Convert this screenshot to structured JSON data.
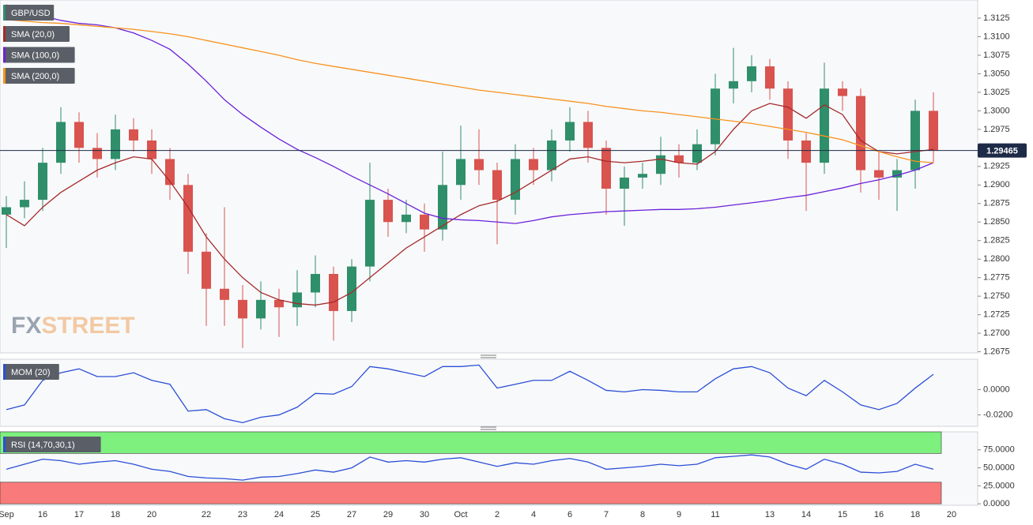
{
  "chart_data": [
    {
      "type": "candlestick",
      "watermark": [
        "FX",
        "STREET"
      ],
      "categories": [
        "Sep",
        null,
        "16",
        null,
        "17",
        null,
        "18",
        null,
        "20",
        null,
        null,
        "22",
        null,
        "23",
        null,
        "24",
        null,
        "25",
        null,
        "27",
        null,
        "29",
        null,
        "30",
        null,
        "Oct",
        null,
        "2",
        null,
        "4",
        null,
        "6",
        null,
        "7",
        null,
        "8",
        null,
        "9",
        null,
        "11",
        null,
        null,
        "13",
        null,
        "14",
        null,
        "15",
        null,
        "16",
        null,
        "18",
        null,
        "20"
      ],
      "ohlc": {
        "name": "GBP/USD",
        "up_color": "#2f8f6a",
        "down_color": "#d9534f",
        "open": [
          1.286,
          1.287,
          1.288,
          1.293,
          1.2985,
          1.295,
          1.2935,
          1.2975,
          1.296,
          1.2935,
          1.29,
          1.281,
          1.276,
          1.2745,
          1.272,
          1.2745,
          1.2735,
          1.2755,
          1.278,
          1.273,
          1.279,
          1.288,
          1.285,
          1.286,
          1.284,
          1.29,
          1.2935,
          1.292,
          1.288,
          1.2935,
          1.292,
          1.296,
          1.2985,
          1.295,
          1.2895,
          1.291,
          1.2915,
          1.294,
          1.293,
          1.2955,
          1.303,
          1.304,
          1.306,
          1.303,
          1.296,
          1.293,
          1.303,
          1.302,
          1.292,
          1.291,
          1.292,
          1.3,
          null
        ],
        "high": [
          1.2885,
          1.2905,
          1.295,
          1.3005,
          1.2998,
          1.297,
          1.2995,
          1.299,
          1.2975,
          1.295,
          1.2915,
          1.2835,
          1.287,
          1.2765,
          1.277,
          1.276,
          1.2785,
          1.2805,
          1.279,
          1.28,
          1.293,
          1.2895,
          1.288,
          1.2875,
          1.2945,
          1.298,
          1.2975,
          1.293,
          1.2955,
          1.295,
          1.2975,
          1.3005,
          1.3,
          1.296,
          1.2925,
          1.293,
          1.2965,
          1.2955,
          1.2975,
          1.305,
          1.3085,
          1.3075,
          1.307,
          1.304,
          1.297,
          1.3065,
          1.304,
          1.303,
          1.2945,
          1.2935,
          1.3015,
          1.3025,
          null
        ],
        "low": [
          1.2815,
          1.2855,
          1.2865,
          1.2915,
          1.293,
          1.291,
          1.292,
          1.2945,
          1.2915,
          1.288,
          1.278,
          1.271,
          1.271,
          1.268,
          1.2705,
          1.2695,
          1.271,
          1.2735,
          1.269,
          1.2715,
          1.277,
          1.283,
          1.2835,
          1.281,
          1.2825,
          1.288,
          1.29,
          1.282,
          1.286,
          1.29,
          1.2905,
          1.2945,
          1.293,
          1.286,
          1.2845,
          1.2895,
          1.29,
          1.291,
          1.292,
          1.294,
          1.301,
          1.3025,
          1.3015,
          1.2935,
          1.2865,
          1.2915,
          1.3,
          1.289,
          1.288,
          1.2865,
          1.2895,
          1.293,
          null
        ],
        "close": [
          1.287,
          1.288,
          1.293,
          1.2985,
          1.295,
          1.2935,
          1.2975,
          1.296,
          1.2935,
          1.29,
          1.281,
          1.276,
          1.2745,
          1.272,
          1.2745,
          1.2735,
          1.2755,
          1.278,
          1.273,
          1.279,
          1.288,
          1.285,
          1.286,
          1.284,
          1.29,
          1.2935,
          1.292,
          1.288,
          1.2935,
          1.292,
          1.296,
          1.2985,
          1.295,
          1.2895,
          1.291,
          1.2915,
          1.294,
          1.293,
          1.2955,
          1.303,
          1.304,
          1.306,
          1.303,
          1.296,
          1.293,
          1.303,
          1.302,
          1.292,
          1.291,
          1.292,
          1.3,
          1.29465,
          null
        ]
      },
      "series": [
        {
          "name": "SMA (20,0)",
          "color": "#a52a2a",
          "values": [
            1.286,
            1.2845,
            1.287,
            1.289,
            1.2905,
            1.292,
            1.293,
            1.2938,
            1.2935,
            1.2905,
            1.287,
            1.283,
            1.28,
            1.2775,
            1.2755,
            1.2745,
            1.274,
            1.2738,
            1.2742,
            1.2755,
            1.2775,
            1.2795,
            1.2815,
            1.283,
            1.2845,
            1.286,
            1.2872,
            1.2878,
            1.289,
            1.2905,
            1.292,
            1.2935,
            1.2938,
            1.2932,
            1.293,
            1.2932,
            1.2935,
            1.293,
            1.2928,
            1.2945,
            1.2975,
            1.3,
            1.301,
            1.3005,
            1.299,
            1.3008,
            1.2995,
            1.296,
            1.2945,
            1.2942,
            1.2945,
            1.2948,
            null
          ]
        },
        {
          "name": "SMA (100,0)",
          "color": "#6a22d8",
          "values": [
            1.3143,
            1.3135,
            1.3128,
            1.3122,
            1.3118,
            1.3116,
            1.3112,
            1.3105,
            1.3095,
            1.3083,
            1.3063,
            1.304,
            1.3015,
            1.2995,
            1.2978,
            1.2962,
            1.2948,
            1.2937,
            1.2925,
            1.2912,
            1.29,
            1.2888,
            1.2875,
            1.2862,
            1.2855,
            1.2853,
            1.2852,
            1.285,
            1.2848,
            1.2852,
            1.2857,
            1.286,
            1.2862,
            1.2864,
            1.2865,
            1.2866,
            1.2867,
            1.2867,
            1.2868,
            1.287,
            1.2873,
            1.2876,
            1.2879,
            1.2883,
            1.2886,
            1.2891,
            1.2896,
            1.2902,
            1.2907,
            1.2913,
            1.292,
            1.293,
            null
          ]
        },
        {
          "name": "SMA (200,0)",
          "color": "#f7931e",
          "values": [
            1.3123,
            1.3121,
            1.3119,
            1.3118,
            1.3116,
            1.3114,
            1.3112,
            1.311,
            1.3107,
            1.3104,
            1.31,
            1.3095,
            1.309,
            1.3085,
            1.308,
            1.3075,
            1.3069,
            1.3064,
            1.306,
            1.3056,
            1.3052,
            1.3048,
            1.3044,
            1.304,
            1.3036,
            1.3032,
            1.3028,
            1.3025,
            1.3022,
            1.3019,
            1.3016,
            1.3013,
            1.301,
            1.3006,
            1.3003,
            1.3,
            1.2998,
            1.2995,
            1.2992,
            1.2989,
            1.2986,
            1.2983,
            1.2979,
            1.2975,
            1.2971,
            1.2966,
            1.2961,
            1.2953,
            1.2945,
            1.2938,
            1.2932,
            1.293,
            null
          ]
        }
      ],
      "last_price": 1.29465,
      "ylim": [
        1.26735,
        1.31495
      ],
      "yticks": [
        1.3125,
        {
          "value": 1.31,
          "label": "1.3100"
        },
        1.3075,
        {
          "value": 1.305,
          "label": "1.3050"
        },
        1.3025,
        {
          "value": 1.3,
          "label": "1.3000"
        },
        1.2975,
        {
          "value": 1.295,
          "label": "1.2950"
        },
        1.2925,
        {
          "value": 1.29,
          "label": "1.2900"
        },
        1.2875,
        {
          "value": 1.285,
          "label": "1.2850"
        },
        1.2825,
        {
          "value": 1.28,
          "label": "1.2800"
        },
        1.2775,
        {
          "value": 1.275,
          "label": "1.2750"
        },
        1.2725,
        {
          "value": 1.27,
          "label": "1.2700"
        },
        1.2675
      ]
    },
    {
      "type": "line",
      "series": [
        {
          "name": "MOM (20)",
          "color": "#2b4fd6",
          "values": [
            -0.0158,
            -0.0121,
            0.0073,
            0.0133,
            0.0164,
            0.0103,
            0.0103,
            0.0133,
            0.0073,
            0.0042,
            -0.017,
            -0.0158,
            -0.023,
            -0.0261,
            -0.0218,
            -0.02,
            -0.0139,
            -0.003,
            -0.0036,
            0.0024,
            0.0182,
            0.0164,
            0.0133,
            0.0103,
            0.0182,
            0.0182,
            0.0194,
            0.0012,
            0.0042,
            0.0073,
            0.0073,
            0.0145,
            0.0073,
            -0.0006,
            -0.0018,
            0.0,
            -0.0006,
            -0.0018,
            -0.0018,
            0.0085,
            0.0164,
            0.0182,
            0.0133,
            0.0012,
            -0.0048,
            0.0073,
            -0.0018,
            -0.0121,
            -0.0158,
            -0.0109,
            0.0012,
            0.0121,
            null
          ]
        }
      ],
      "ylim": [
        -0.029,
        0.024
      ],
      "yticks": [
        {
          "value": 0,
          "label": "0.0000"
        },
        {
          "value": -0.02,
          "label": "-0.0200"
        }
      ]
    },
    {
      "type": "line",
      "series": [
        {
          "name": "RSI (14,70,30,1)",
          "color": "#2b4fd6",
          "values": [
            48,
            55,
            62,
            60,
            55,
            58,
            60,
            55,
            48,
            45,
            38,
            36,
            35,
            33,
            37,
            38,
            42,
            47,
            44,
            50,
            65,
            58,
            60,
            58,
            62,
            64,
            58,
            52,
            57,
            55,
            60,
            63,
            58,
            48,
            50,
            52,
            55,
            53,
            55,
            64,
            66,
            68,
            65,
            55,
            48,
            62,
            55,
            44,
            43,
            45,
            55,
            48,
            null
          ]
        }
      ],
      "bands": [
        {
          "from": 70,
          "to": 100,
          "color": "#7ef07e"
        },
        {
          "from": 0,
          "to": 30,
          "color": "#f87a7a"
        }
      ],
      "ylim": [
        -2,
        100
      ],
      "yticks": [
        {
          "value": 75,
          "label": "75.0000"
        },
        {
          "value": 50,
          "label": "50.0000"
        },
        {
          "value": 25,
          "label": "25.0000"
        },
        {
          "value": 0,
          "label": "0.0000"
        }
      ]
    }
  ]
}
